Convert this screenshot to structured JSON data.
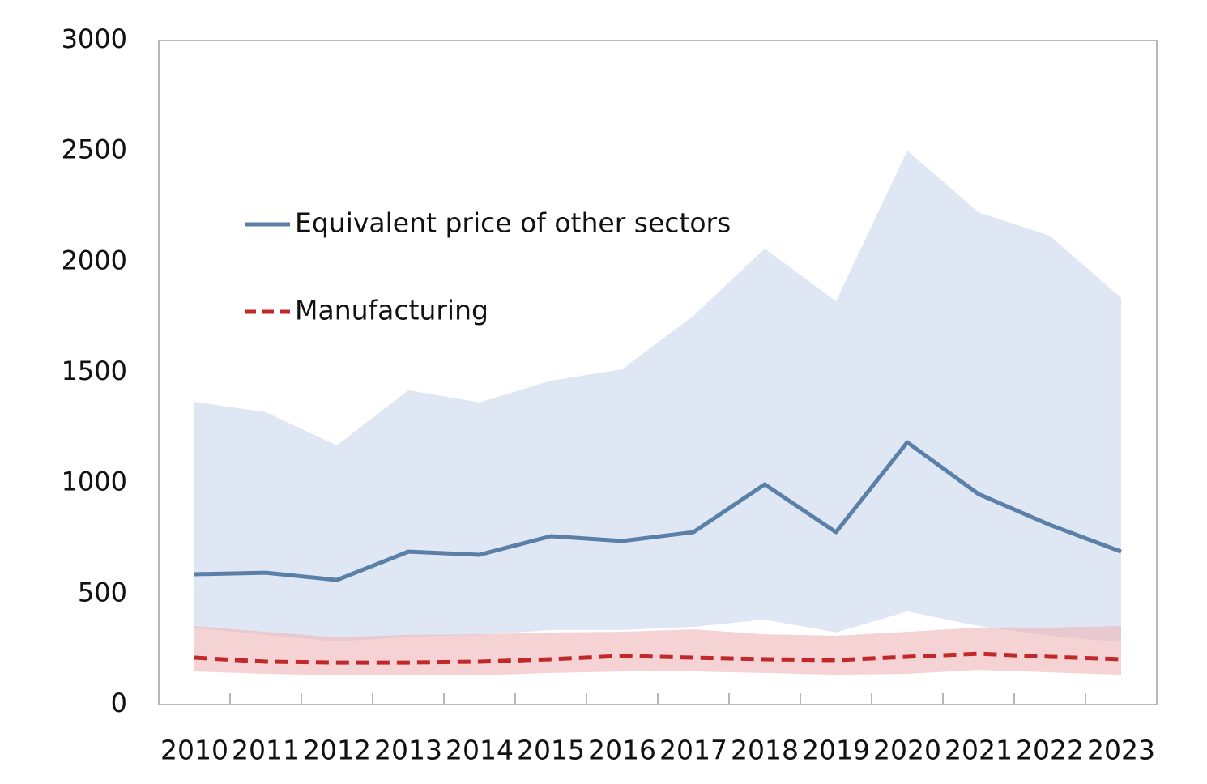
{
  "chart_data": {
    "type": "line",
    "categories": [
      "2010",
      "2011",
      "2012",
      "2013",
      "2014",
      "2015",
      "2016",
      "2017",
      "2018",
      "2019",
      "2020",
      "2021",
      "2022",
      "2023"
    ],
    "series": [
      {
        "name": "Equivalent price of other sectors",
        "color": "#5b80a8",
        "dash": false,
        "values": [
          589,
          596,
          563,
          691,
          677,
          761,
          739,
          779,
          995,
          779,
          1185,
          951,
          812,
          691
        ],
        "range": {
          "color": "#dfe6f4",
          "upper": [
            1368,
            1321,
            1171,
            1420,
            1365,
            1463,
            1515,
            1756,
            2060,
            1822,
            2502,
            2224,
            2118,
            1837
          ],
          "lower": [
            348,
            315,
            285,
            307,
            315,
            337,
            337,
            351,
            384,
            326,
            421,
            355,
            311,
            282
          ]
        }
      },
      {
        "name": "Manufacturing",
        "color": "#c0282a",
        "dash": true,
        "values": [
          212,
          194,
          190,
          190,
          194,
          205,
          220,
          212,
          205,
          201,
          216,
          230,
          216,
          205
        ],
        "range": {
          "color": "#eeb6b8",
          "upper": [
            355,
            329,
            304,
            315,
            318,
            326,
            329,
            340,
            318,
            311,
            329,
            348,
            348,
            355
          ],
          "lower": [
            150,
            139,
            132,
            132,
            132,
            143,
            150,
            150,
            143,
            135,
            139,
            157,
            146,
            135
          ]
        }
      }
    ],
    "ylim": [
      0,
      3000
    ],
    "yticks": [
      0,
      500,
      1000,
      1500,
      2000,
      2500,
      3000
    ],
    "grid": false,
    "legend": "upper left"
  }
}
